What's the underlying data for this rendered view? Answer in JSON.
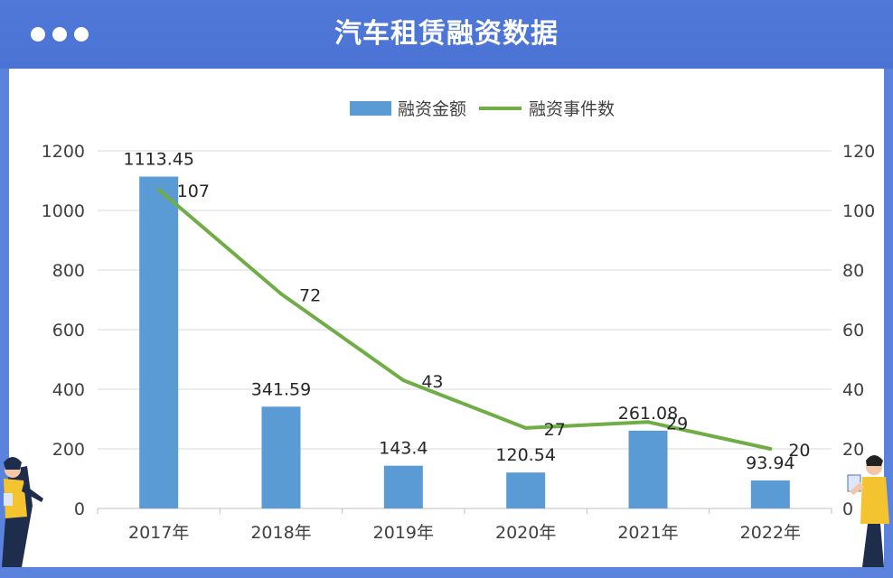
{
  "window": {
    "title": "汽车租赁融资数据"
  },
  "colors": {
    "header": "#4f78d8",
    "bar": "#5b9bd5",
    "line": "#70ad47",
    "grid": "#d9d9d9",
    "axis_text": "#404040"
  },
  "chart_data": {
    "type": "bar",
    "categories": [
      "2017年",
      "2018年",
      "2019年",
      "2020年",
      "2021年",
      "2022年"
    ],
    "series": [
      {
        "name": "融资金额",
        "type": "bar",
        "axis": "left",
        "values": [
          1113.45,
          341.59,
          143.4,
          120.54,
          261.08,
          93.94
        ]
      },
      {
        "name": "融资事件数",
        "type": "line",
        "axis": "right",
        "values": [
          107,
          72,
          43,
          27,
          29,
          20
        ]
      }
    ],
    "left_axis": {
      "min": 0,
      "max": 1200,
      "ticks": [
        0,
        200,
        400,
        600,
        800,
        1000,
        1200
      ]
    },
    "right_axis": {
      "min": 0,
      "max": 120,
      "ticks": [
        0,
        20,
        40,
        60,
        80,
        100,
        120
      ]
    },
    "grid": true,
    "legend_position": "top-center"
  }
}
